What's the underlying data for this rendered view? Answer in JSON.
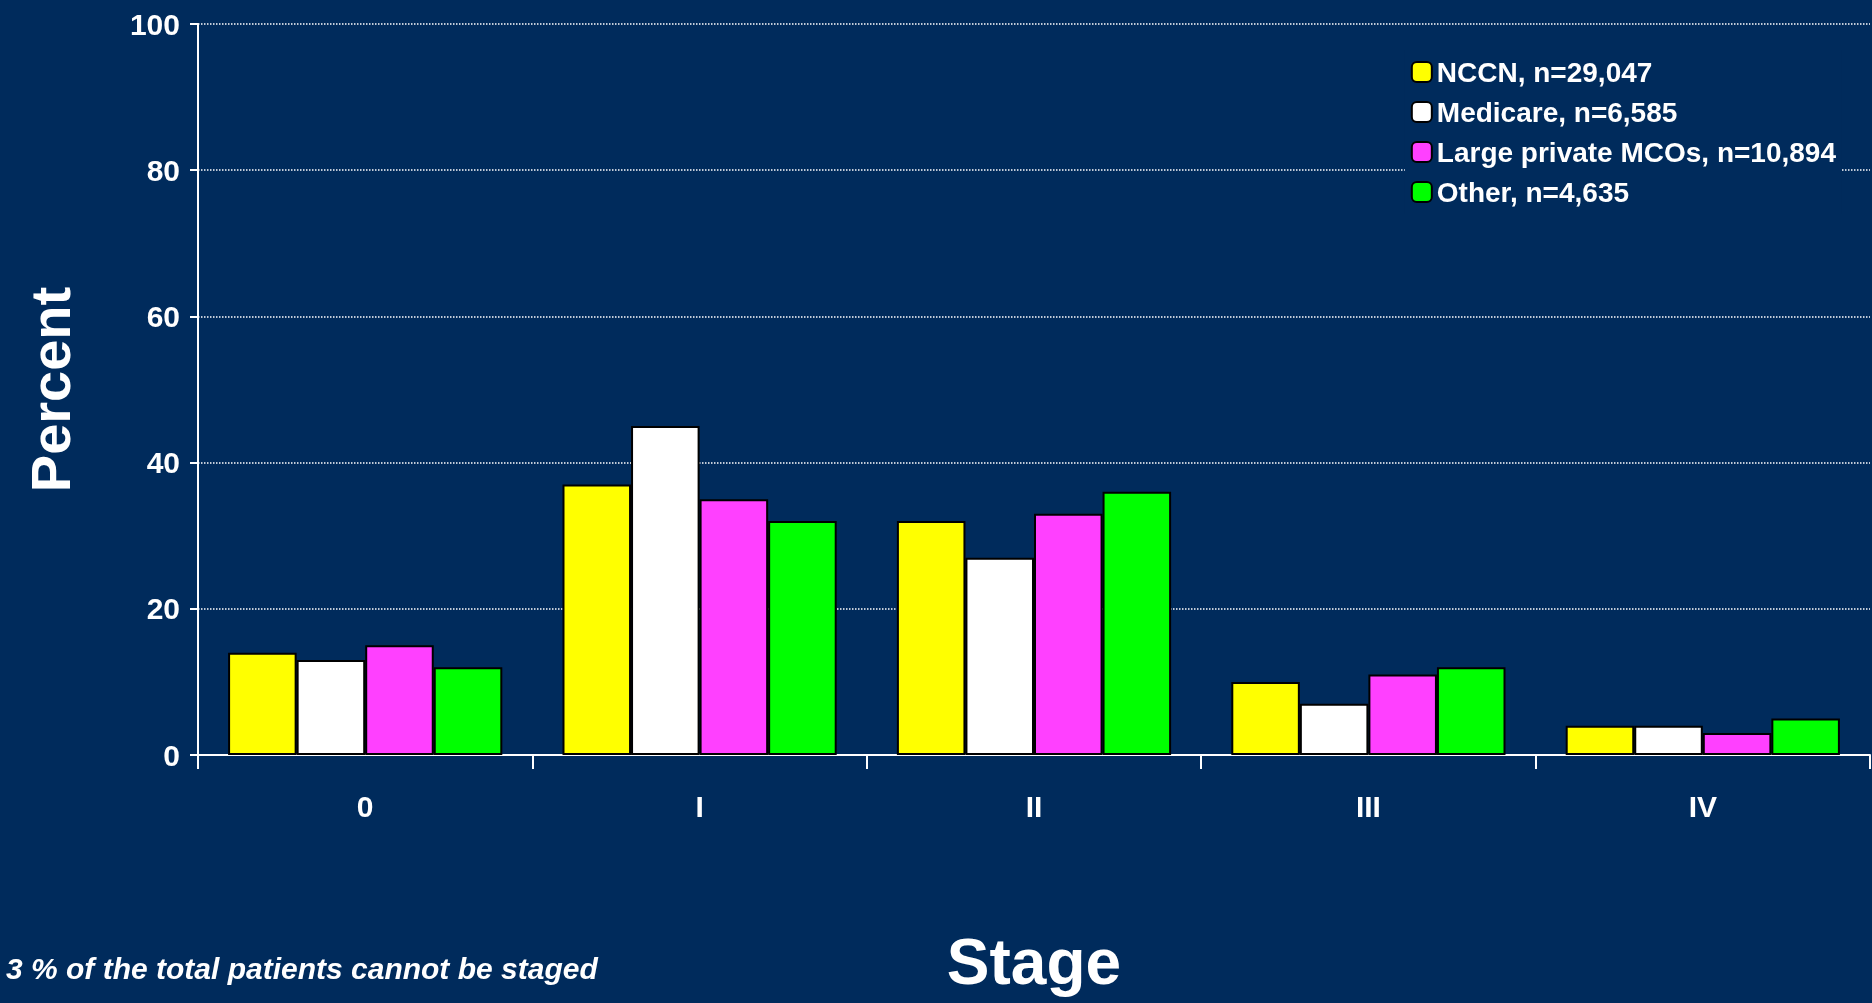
{
  "chart_data": {
    "type": "bar",
    "xlabel": "Stage",
    "ylabel": "Percent",
    "categories": [
      "0",
      "I",
      "II",
      "III",
      "IV"
    ],
    "series": [
      {
        "name": "NCCN, n=29,047",
        "color": "#ffff00",
        "values": [
          14,
          37,
          32,
          10,
          4
        ]
      },
      {
        "name": "Medicare, n=6,585",
        "color": "#ffffff",
        "values": [
          13,
          45,
          27,
          7,
          4
        ]
      },
      {
        "name": "Large private MCOs, n=10,894",
        "color": "#ff40ff",
        "values": [
          15,
          35,
          33,
          11,
          3
        ]
      },
      {
        "name": "Other, n=4,635",
        "color": "#00ff00",
        "values": [
          12,
          32,
          36,
          12,
          5
        ]
      }
    ],
    "ylim": [
      0,
      100
    ],
    "yticks": [
      0,
      20,
      40,
      60,
      80,
      100
    ],
    "grid": "y",
    "legend": "top right",
    "annotations": [
      "3 % of the total patients cannot be staged"
    ]
  }
}
